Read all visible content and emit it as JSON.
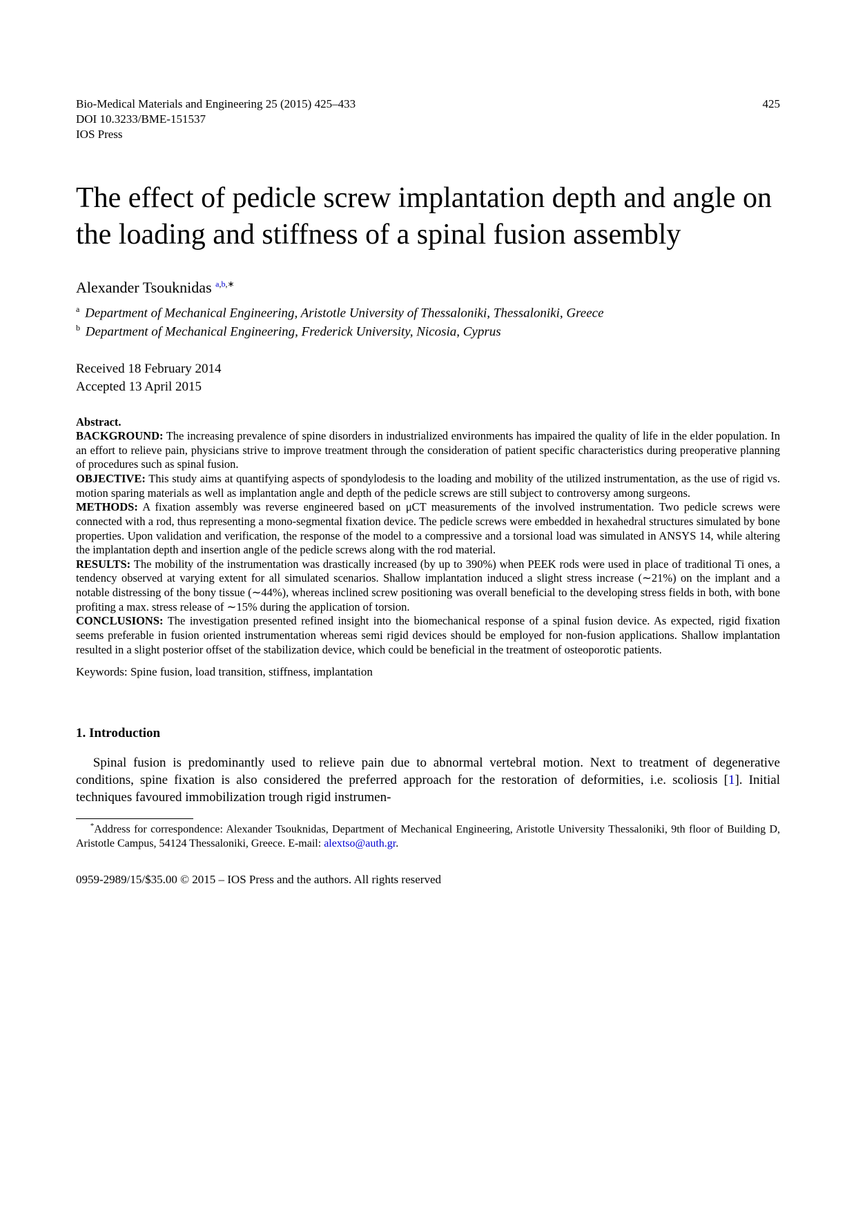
{
  "header": {
    "journal_line": "Bio-Medical Materials and Engineering 25 (2015) 425–433",
    "doi_line": "DOI 10.3233/BME-151537",
    "publisher": "IOS Press",
    "page_number": "425"
  },
  "title": "The effect of pedicle screw implantation depth and angle on the loading and stiffness of a spinal fusion assembly",
  "author": {
    "name": "Alexander Tsouknidas",
    "sup_a": "a",
    "sup_b": "b",
    "sup_star": "∗"
  },
  "affiliations": {
    "a_sup": "a",
    "a_text": "Department of Mechanical Engineering, Aristotle University of Thessaloniki, Thessaloniki, Greece",
    "b_sup": "b",
    "b_text": "Department of Mechanical Engineering, Frederick University, Nicosia, Cyprus"
  },
  "dates": {
    "received": "Received 18 February 2014",
    "accepted": "Accepted 13 April 2015"
  },
  "abstract": {
    "label": "Abstract.",
    "background_label": "BACKGROUND:",
    "background_text": " The increasing prevalence of spine disorders in industrialized environments has impaired the quality of life in the elder population. In an effort to relieve pain, physicians strive to improve treatment through the consideration of patient specific characteristics during preoperative planning of procedures such as spinal fusion.",
    "objective_label": "OBJECTIVE:",
    "objective_text": " This study aims at quantifying aspects of spondylodesis to the loading and mobility of the utilized instrumentation, as the use of rigid vs. motion sparing materials as well as implantation angle and depth of the pedicle screws are still subject to controversy among surgeons.",
    "methods_label": "METHODS:",
    "methods_text": " A fixation assembly was reverse engineered based on μCT measurements of the involved instrumentation. Two pedicle screws were connected with a rod, thus representing a mono-segmental fixation device. The pedicle screws were embedded in hexahedral structures simulated by bone properties. Upon validation and verification, the response of the model to a compressive and a torsional load was simulated in ANSYS 14, while altering the implantation depth and insertion angle of the pedicle screws along with the rod material.",
    "results_label": "RESULTS:",
    "results_text": " The mobility of the instrumentation was drastically increased (by up to 390%) when PEEK rods were used in place of traditional Ti ones, a tendency observed at varying extent for all simulated scenarios. Shallow implantation induced a slight stress increase (∼21%) on the implant and a notable distressing of the bony tissue (∼44%), whereas inclined screw positioning was overall beneficial to the developing stress fields in both, with bone profiting a max. stress release of ∼15% during the application of torsion.",
    "conclusions_label": "CONCLUSIONS:",
    "conclusions_text": " The investigation presented refined insight into the biomechanical response of a spinal fusion device. As expected, rigid fixation seems preferable in fusion oriented instrumentation whereas semi rigid devices should be employed for non-fusion applications. Shallow implantation resulted in a slight posterior offset of the stabilization device, which could be beneficial in the treatment of osteoporotic patients."
  },
  "keywords": "Keywords: Spine fusion, load transition, stiffness, implantation",
  "section1": {
    "heading": "1.  Introduction",
    "para1_a": "Spinal fusion is predominantly used to relieve pain due to abnormal vertebral motion. Next to treatment of degenerative conditions, spine fixation is also considered the preferred approach for the restoration of deformities, i.e. scoliosis [",
    "para1_ref": "1",
    "para1_b": "]. Initial techniques favoured immobilization trough rigid instrumen-"
  },
  "footnote": {
    "marker": "*",
    "text_a": "Address for correspondence: Alexander Tsouknidas, Department of Mechanical Engineering, Aristotle University Thessaloniki, 9th floor of Building D, Aristotle Campus, 54124 Thessaloniki, Greece. E-mail: ",
    "email": "alextso@auth.gr",
    "text_b": "."
  },
  "copyright": "0959-2989/15/$35.00 © 2015 – IOS Press and the authors. All rights reserved",
  "colors": {
    "link": "#0000d0",
    "text": "#000000",
    "background": "#ffffff"
  }
}
